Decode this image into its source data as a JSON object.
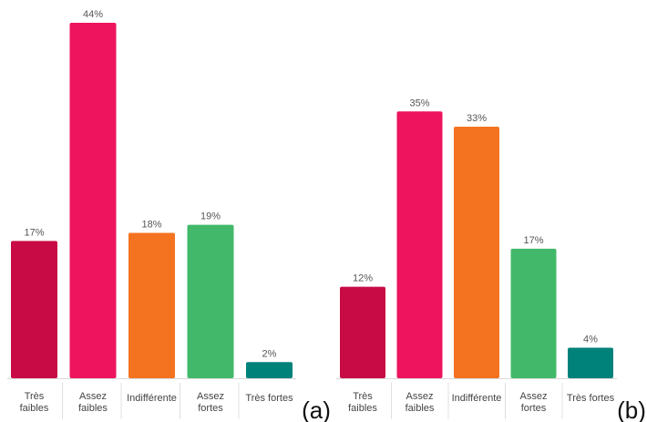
{
  "chart_data": [
    {
      "type": "bar",
      "panel": "(a)",
      "categories": [
        [
          "Très",
          "faibles"
        ],
        [
          "Assez",
          "faibles"
        ],
        [
          "Indifférente"
        ],
        [
          "Assez",
          "fortes"
        ],
        [
          "Très fortes"
        ]
      ],
      "values": [
        17,
        44,
        18,
        19,
        2
      ],
      "value_labels": [
        "17%",
        "44%",
        "18%",
        "19%",
        "2%"
      ],
      "colors": [
        "#c80b45",
        "#ee145d",
        "#f47320",
        "#42b96a",
        "#00827a"
      ],
      "ylim": [
        0,
        44
      ],
      "grid": false,
      "legend": "none"
    },
    {
      "type": "bar",
      "panel": "(b)",
      "categories": [
        [
          "Très",
          "faibles"
        ],
        [
          "Assez",
          "faibles"
        ],
        [
          "Indifférente"
        ],
        [
          "Assez",
          "fortes"
        ],
        [
          "Très fortes"
        ]
      ],
      "values": [
        12,
        35,
        33,
        17,
        4
      ],
      "value_labels": [
        "12%",
        "35%",
        "33%",
        "17%",
        "4%"
      ],
      "colors": [
        "#c80b45",
        "#ee145d",
        "#f47320",
        "#42b96a",
        "#00827a"
      ],
      "ylim": [
        0,
        44
      ],
      "grid": false,
      "legend": "none"
    }
  ]
}
